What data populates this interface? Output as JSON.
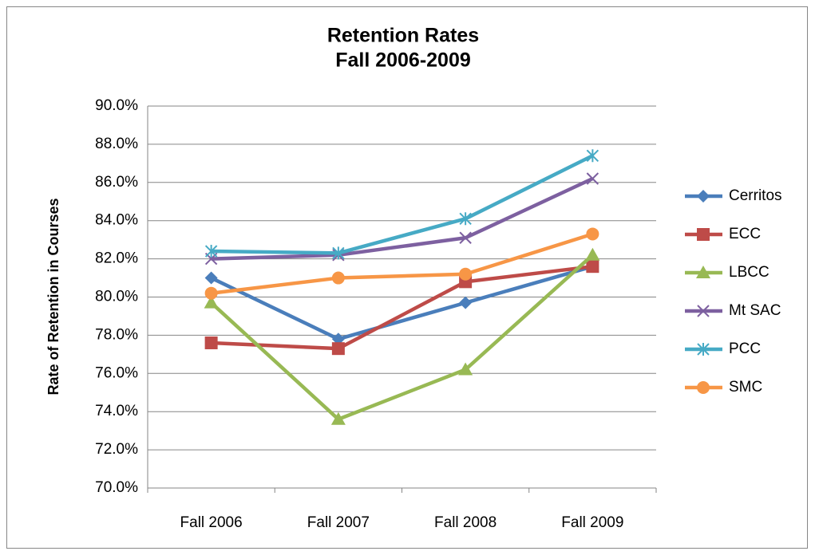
{
  "chart_data": {
    "type": "line",
    "title": "Retention Rates",
    "subtitle": "Fall 2006-2009",
    "ylabel": "Rate of Retention in Courses",
    "categories": [
      "Fall 2006",
      "Fall 2007",
      "Fall 2008",
      "Fall 2009"
    ],
    "series": [
      {
        "name": "Cerritos",
        "color": "#4a7ebb",
        "marker": "diamond",
        "values": [
          81.0,
          77.8,
          79.7,
          81.6
        ]
      },
      {
        "name": "ECC",
        "color": "#be4b48",
        "marker": "square",
        "values": [
          77.6,
          77.3,
          80.8,
          81.6
        ]
      },
      {
        "name": "LBCC",
        "color": "#98b954",
        "marker": "triangle",
        "values": [
          79.7,
          73.6,
          76.2,
          82.2
        ]
      },
      {
        "name": "Mt SAC",
        "color": "#7d60a0",
        "marker": "x",
        "values": [
          82.0,
          82.2,
          83.1,
          86.2
        ]
      },
      {
        "name": "PCC",
        "color": "#46aac5",
        "marker": "star",
        "values": [
          82.4,
          82.3,
          84.1,
          87.4
        ]
      },
      {
        "name": "SMC",
        "color": "#f79646",
        "marker": "circle",
        "values": [
          80.2,
          81.0,
          81.2,
          83.3
        ]
      }
    ],
    "ylim": [
      70,
      90
    ],
    "yticks": [
      {
        "value": 70,
        "label": "70.0%"
      },
      {
        "value": 72,
        "label": "72.0%"
      },
      {
        "value": 74,
        "label": "74.0%"
      },
      {
        "value": 76,
        "label": "76.0%"
      },
      {
        "value": 78,
        "label": "78.0%"
      },
      {
        "value": 80,
        "label": "80.0%"
      },
      {
        "value": 82,
        "label": "82.0%"
      },
      {
        "value": 84,
        "label": "84.0%"
      },
      {
        "value": 86,
        "label": "86.0%"
      },
      {
        "value": 88,
        "label": "88.0%"
      },
      {
        "value": 90,
        "label": "90.0%"
      }
    ],
    "grid": true,
    "legend": "right"
  }
}
